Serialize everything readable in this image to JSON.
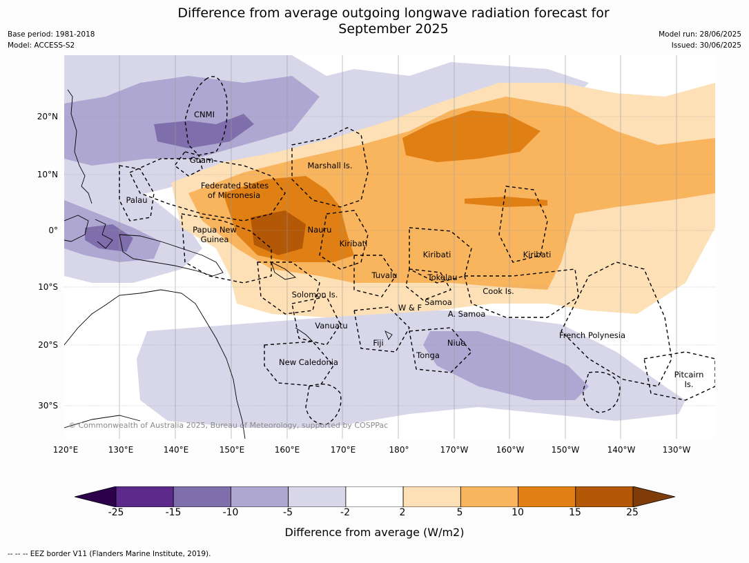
{
  "title_line1": "Difference from average outgoing longwave radiation forecast for",
  "title_line2": "September 2025",
  "base_period": "Base period: 1981-2018",
  "model": "Model: ACCESS-S2",
  "model_run": "Model run: 28/06/2025",
  "issued": "Issued: 30/06/2025",
  "lon_labels": [
    "120°E",
    "130°E",
    "140°E",
    "150°E",
    "160°E",
    "170°E",
    "180°",
    "170°W",
    "160°W",
    "150°W",
    "140°W",
    "130°W"
  ],
  "lat_labels": [
    "20°N",
    "10°N",
    "0°",
    "10°S",
    "20°S",
    "30°S"
  ],
  "places": {
    "cnmi": "CNMI",
    "guam": "Guam",
    "marshall": "Marshall Is.",
    "fsm_1": "Federated States",
    "fsm_2": "of Micronesia",
    "palau": "Palau",
    "png_1": "Papua New",
    "png_2": "Guinea",
    "nauru": "Nauru",
    "kiribati_w": "Kiribati",
    "kiribati_c": "Kiribati",
    "kiribati_e": "Kiribati",
    "tuvalu": "Tuvalu",
    "tokelau": "Tokelau",
    "cook": "Cook Is.",
    "solomon": "Solomon Is.",
    "samoa": "Samoa",
    "wf": "W & F",
    "asamoa": "A. Samoa",
    "vanuatu": "Vanuatu",
    "fiji": "Fiji",
    "niue": "Niue",
    "tonga": "Tonga",
    "french_poly": "French Polynesia",
    "new_caledonia": "New Caledonia",
    "pitcairn_1": "Pitcairn",
    "pitcairn_2": "Is."
  },
  "copyright": "© Commonwealth of Australia 2025, Bureau of Meteorology, supported by COSPPac",
  "colorbar": {
    "ticks": [
      "-25",
      "-15",
      "-10",
      "-5",
      "-2",
      "2",
      "5",
      "10",
      "15",
      "25"
    ],
    "colors": [
      "#5b2a8a",
      "#7f6eac",
      "#ada7d1",
      "#d8d7e9",
      "#ffffff",
      "#fde0b6",
      "#f9b45e",
      "#df7f14",
      "#b35806"
    ],
    "under_color": "#2d004b",
    "over_color": "#7f3b08",
    "label": "Difference from average (W/m2)"
  },
  "footnote": "--  --  -- EEZ border V11 (Flanders Marine Institute, 2019)."
}
